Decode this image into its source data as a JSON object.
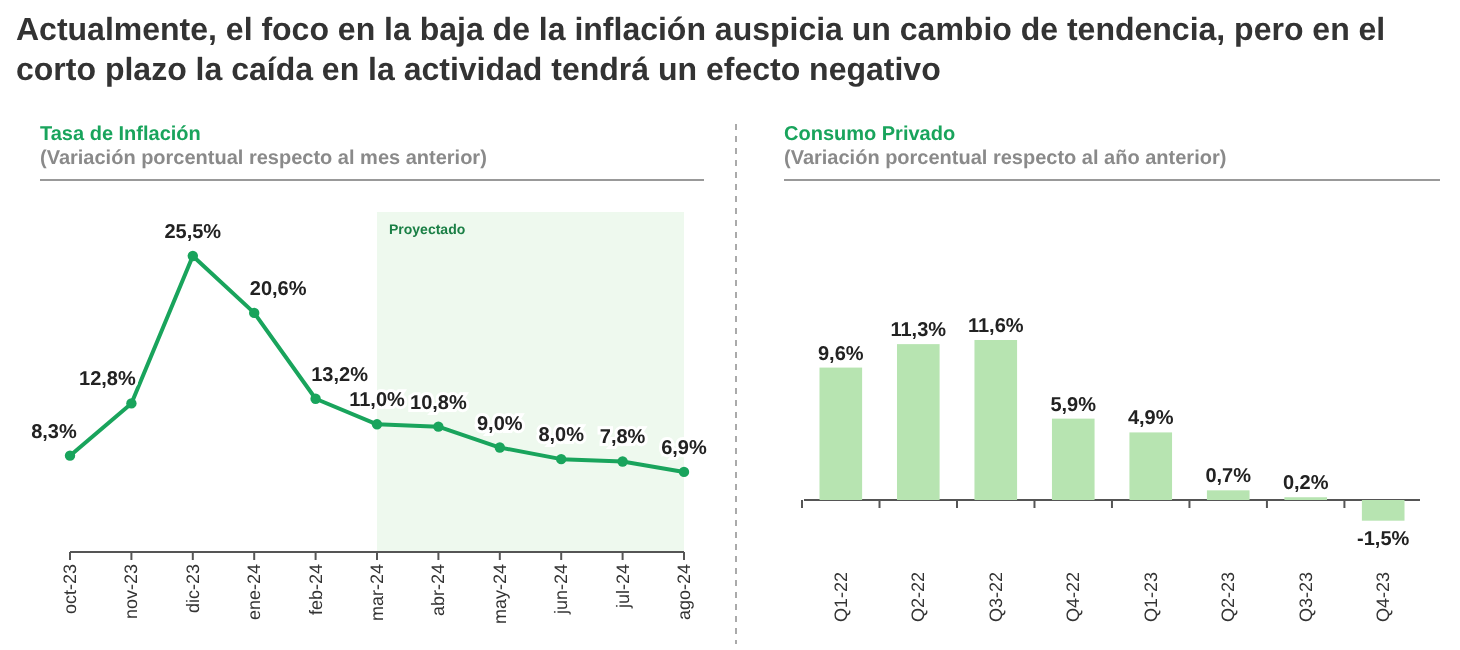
{
  "chart_data": [
    {
      "type": "line",
      "title": "Tasa de Inflación",
      "subtitle": "(Variación porcentual respecto al mes anterior)",
      "annotations": [
        "Actualmente, el foco en la baja de la inflación auspicia un cambio de tendencia, pero en el corto plazo la caída en la actividad tendrá un efecto negativo"
      ],
      "categories": [
        "oct-23",
        "nov-23",
        "dic-23",
        "ene-24",
        "feb-24",
        "mar-24",
        "abr-24",
        "may-24",
        "jun-24",
        "jul-24",
        "ago-24"
      ],
      "series": [
        {
          "color": "#19a45c",
          "values": [
            8.3,
            12.8,
            25.5,
            20.6,
            13.2,
            11.0,
            10.8,
            9.0,
            8.0,
            7.8,
            6.9
          ],
          "value_labels": [
            "8,3%",
            "12,8%",
            "25,5%",
            "20,6%",
            "13,2%",
            "11,0%",
            "10,8%",
            "9,0%",
            "8,0%",
            "7,8%",
            "6,9%"
          ]
        }
      ],
      "bands": [
        {
          "axis": "x",
          "from": "mar-24",
          "to": "ago-24",
          "label": "Proyectado",
          "color": "#eef9ee"
        }
      ],
      "marker": "circle",
      "line_style": "solid"
    },
    {
      "type": "bar",
      "title": "Consumo Privado",
      "subtitle": "(Variación porcentual respecto al año anterior)",
      "categories": [
        "Q1-22",
        "Q2-22",
        "Q3-22",
        "Q4-22",
        "Q1-23",
        "Q2-23",
        "Q3-23",
        "Q4-23"
      ],
      "series": [
        {
          "color": "#b7e4b1",
          "values": [
            9.6,
            11.3,
            11.6,
            5.9,
            4.9,
            0.7,
            0.2,
            -1.5
          ],
          "value_labels": [
            "9,6%",
            "11,3%",
            "11,6%",
            "5,9%",
            "4,9%",
            "0,7%",
            "0,2%",
            "-1,5%"
          ]
        }
      ]
    }
  ]
}
